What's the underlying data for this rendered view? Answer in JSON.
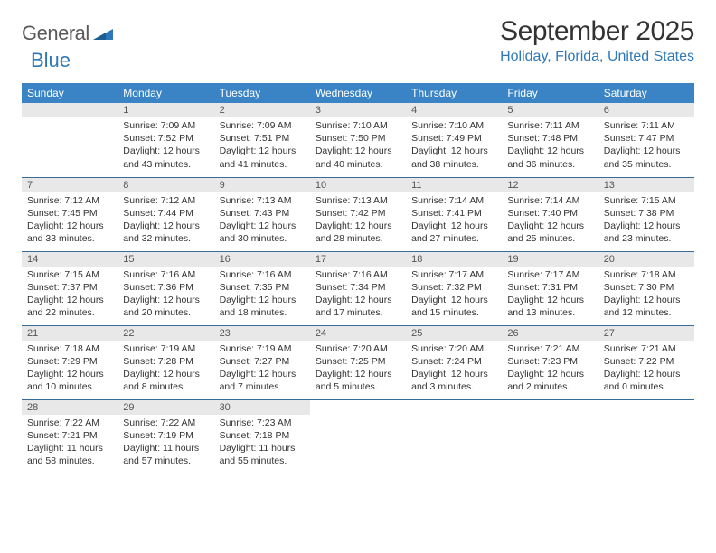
{
  "brand": {
    "part1": "General",
    "part2": "Blue"
  },
  "header": {
    "title": "September 2025",
    "location": "Holiday, Florida, United States"
  },
  "colors": {
    "header_bg": "#3a84c6",
    "header_text": "#ffffff",
    "daynum_bg": "#e8e8e8",
    "cell_border": "#3a6a9a",
    "accent": "#2f78b7",
    "logo_gray": "#5a5a5a"
  },
  "weekdays": [
    "Sunday",
    "Monday",
    "Tuesday",
    "Wednesday",
    "Thursday",
    "Friday",
    "Saturday"
  ],
  "weeks": [
    [
      {
        "empty": true
      },
      {
        "n": "1",
        "sunrise": "7:09 AM",
        "sunset": "7:52 PM",
        "daylight": "12 hours and 43 minutes."
      },
      {
        "n": "2",
        "sunrise": "7:09 AM",
        "sunset": "7:51 PM",
        "daylight": "12 hours and 41 minutes."
      },
      {
        "n": "3",
        "sunrise": "7:10 AM",
        "sunset": "7:50 PM",
        "daylight": "12 hours and 40 minutes."
      },
      {
        "n": "4",
        "sunrise": "7:10 AM",
        "sunset": "7:49 PM",
        "daylight": "12 hours and 38 minutes."
      },
      {
        "n": "5",
        "sunrise": "7:11 AM",
        "sunset": "7:48 PM",
        "daylight": "12 hours and 36 minutes."
      },
      {
        "n": "6",
        "sunrise": "7:11 AM",
        "sunset": "7:47 PM",
        "daylight": "12 hours and 35 minutes."
      }
    ],
    [
      {
        "n": "7",
        "sunrise": "7:12 AM",
        "sunset": "7:45 PM",
        "daylight": "12 hours and 33 minutes."
      },
      {
        "n": "8",
        "sunrise": "7:12 AM",
        "sunset": "7:44 PM",
        "daylight": "12 hours and 32 minutes."
      },
      {
        "n": "9",
        "sunrise": "7:13 AM",
        "sunset": "7:43 PM",
        "daylight": "12 hours and 30 minutes."
      },
      {
        "n": "10",
        "sunrise": "7:13 AM",
        "sunset": "7:42 PM",
        "daylight": "12 hours and 28 minutes."
      },
      {
        "n": "11",
        "sunrise": "7:14 AM",
        "sunset": "7:41 PM",
        "daylight": "12 hours and 27 minutes."
      },
      {
        "n": "12",
        "sunrise": "7:14 AM",
        "sunset": "7:40 PM",
        "daylight": "12 hours and 25 minutes."
      },
      {
        "n": "13",
        "sunrise": "7:15 AM",
        "sunset": "7:38 PM",
        "daylight": "12 hours and 23 minutes."
      }
    ],
    [
      {
        "n": "14",
        "sunrise": "7:15 AM",
        "sunset": "7:37 PM",
        "daylight": "12 hours and 22 minutes."
      },
      {
        "n": "15",
        "sunrise": "7:16 AM",
        "sunset": "7:36 PM",
        "daylight": "12 hours and 20 minutes."
      },
      {
        "n": "16",
        "sunrise": "7:16 AM",
        "sunset": "7:35 PM",
        "daylight": "12 hours and 18 minutes."
      },
      {
        "n": "17",
        "sunrise": "7:16 AM",
        "sunset": "7:34 PM",
        "daylight": "12 hours and 17 minutes."
      },
      {
        "n": "18",
        "sunrise": "7:17 AM",
        "sunset": "7:32 PM",
        "daylight": "12 hours and 15 minutes."
      },
      {
        "n": "19",
        "sunrise": "7:17 AM",
        "sunset": "7:31 PM",
        "daylight": "12 hours and 13 minutes."
      },
      {
        "n": "20",
        "sunrise": "7:18 AM",
        "sunset": "7:30 PM",
        "daylight": "12 hours and 12 minutes."
      }
    ],
    [
      {
        "n": "21",
        "sunrise": "7:18 AM",
        "sunset": "7:29 PM",
        "daylight": "12 hours and 10 minutes."
      },
      {
        "n": "22",
        "sunrise": "7:19 AM",
        "sunset": "7:28 PM",
        "daylight": "12 hours and 8 minutes."
      },
      {
        "n": "23",
        "sunrise": "7:19 AM",
        "sunset": "7:27 PM",
        "daylight": "12 hours and 7 minutes."
      },
      {
        "n": "24",
        "sunrise": "7:20 AM",
        "sunset": "7:25 PM",
        "daylight": "12 hours and 5 minutes."
      },
      {
        "n": "25",
        "sunrise": "7:20 AM",
        "sunset": "7:24 PM",
        "daylight": "12 hours and 3 minutes."
      },
      {
        "n": "26",
        "sunrise": "7:21 AM",
        "sunset": "7:23 PM",
        "daylight": "12 hours and 2 minutes."
      },
      {
        "n": "27",
        "sunrise": "7:21 AM",
        "sunset": "7:22 PM",
        "daylight": "12 hours and 0 minutes."
      }
    ],
    [
      {
        "n": "28",
        "sunrise": "7:22 AM",
        "sunset": "7:21 PM",
        "daylight": "11 hours and 58 minutes."
      },
      {
        "n": "29",
        "sunrise": "7:22 AM",
        "sunset": "7:19 PM",
        "daylight": "11 hours and 57 minutes."
      },
      {
        "n": "30",
        "sunrise": "7:23 AM",
        "sunset": "7:18 PM",
        "daylight": "11 hours and 55 minutes."
      },
      {
        "trailing": true
      },
      {
        "trailing": true
      },
      {
        "trailing": true
      },
      {
        "trailing": true
      }
    ]
  ],
  "labels": {
    "sunrise": "Sunrise:",
    "sunset": "Sunset:",
    "daylight": "Daylight:"
  }
}
